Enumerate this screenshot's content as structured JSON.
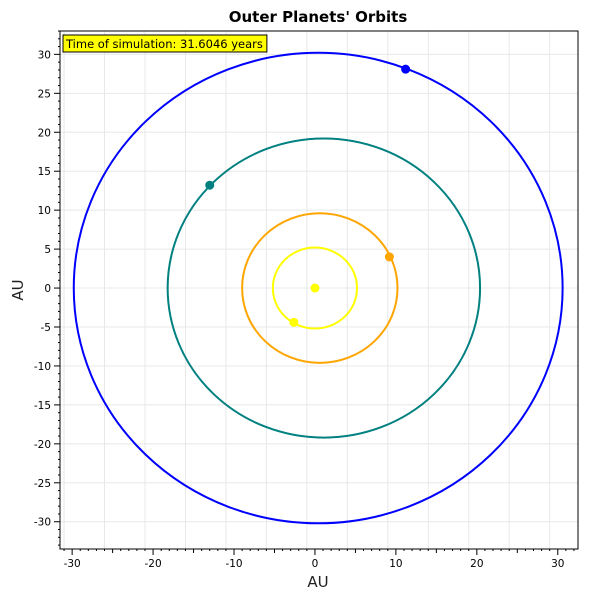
{
  "chart_data": {
    "type": "scatter",
    "title": "Outer Planets' Orbits",
    "xlabel": "AU",
    "ylabel": "AU",
    "xlim": [
      -31.5,
      32.5
    ],
    "ylim": [
      -33.5,
      33
    ],
    "x_ticks": [
      -30,
      -20,
      -10,
      0,
      10,
      20,
      30
    ],
    "y_ticks": [
      30,
      25,
      20,
      15,
      10,
      5,
      0,
      -5,
      -10,
      -15,
      -20,
      -25,
      -30
    ],
    "grid": true,
    "annotation": {
      "text": "Time of simulation: 31.6046 years",
      "background": "#ffff00",
      "position": "top-left"
    },
    "sun": {
      "x": 0,
      "y": 0,
      "color": "#ffff00"
    },
    "series": [
      {
        "color": "#ffff00",
        "orbit": {
          "cx": 0,
          "cy": 0,
          "rx": 5.2,
          "ry": 5.2
        },
        "point": {
          "x": -2.6,
          "y": -4.4
        }
      },
      {
        "color": "#ffa500",
        "orbit": {
          "cx": 0.6,
          "cy": 0,
          "rx": 9.6,
          "ry": 9.6
        },
        "point": {
          "x": 9.2,
          "y": 4.0
        }
      },
      {
        "color": "#008080",
        "orbit": {
          "cx": 1.1,
          "cy": 0,
          "rx": 19.3,
          "ry": 19.2
        },
        "point": {
          "x": -13.0,
          "y": 13.2
        }
      },
      {
        "color": "#0000ff",
        "orbit": {
          "cx": 0.4,
          "cy": 0,
          "rx": 30.2,
          "ry": 30.2
        },
        "point": {
          "x": 11.2,
          "y": 28.1
        }
      }
    ]
  }
}
